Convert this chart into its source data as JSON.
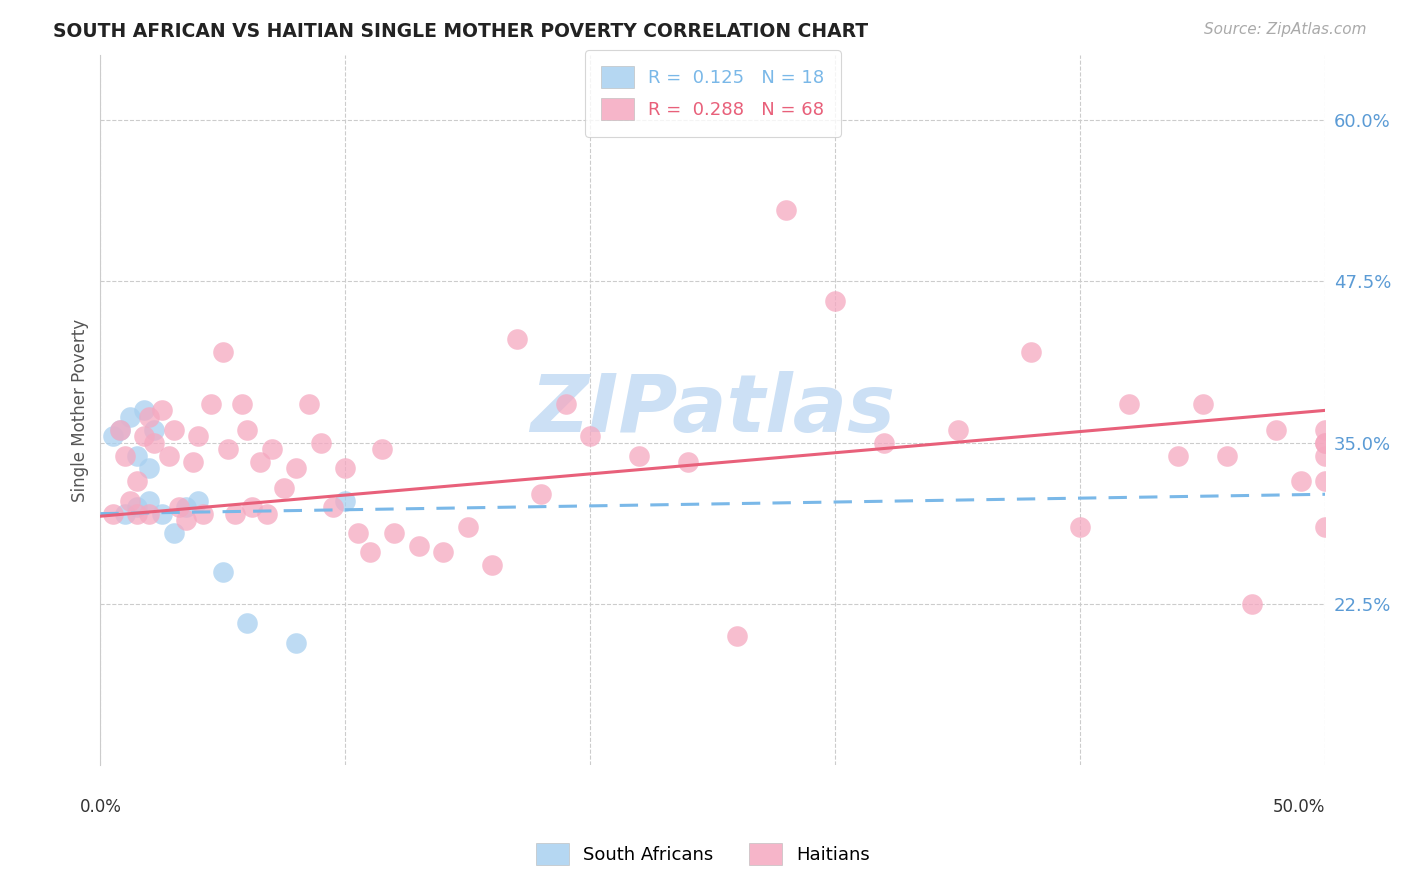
{
  "title": "SOUTH AFRICAN VS HAITIAN SINGLE MOTHER POVERTY CORRELATION CHART",
  "source": "Source: ZipAtlas.com",
  "ylabel": "Single Mother Poverty",
  "ytick_values": [
    0.6,
    0.475,
    0.35,
    0.225
  ],
  "xlim": [
    0.0,
    0.5
  ],
  "ylim": [
    0.1,
    0.65
  ],
  "sa_R": "0.125",
  "sa_N": "18",
  "ha_R": "0.288",
  "ha_N": "68",
  "sa_color": "#a8d0f0",
  "ha_color": "#f5a8c0",
  "sa_line_color": "#7ab8e8",
  "ha_line_color": "#e8607a",
  "watermark": "ZIPatlas",
  "watermark_color": "#cce0f5",
  "tick_label_color": "#5b9bd5",
  "sa_x": [
    0.005,
    0.008,
    0.01,
    0.012,
    0.015,
    0.015,
    0.018,
    0.02,
    0.02,
    0.022,
    0.025,
    0.03,
    0.035,
    0.04,
    0.05,
    0.06,
    0.08,
    0.1
  ],
  "sa_y": [
    0.355,
    0.36,
    0.295,
    0.37,
    0.34,
    0.3,
    0.375,
    0.305,
    0.33,
    0.36,
    0.295,
    0.28,
    0.3,
    0.305,
    0.25,
    0.21,
    0.195,
    0.305
  ],
  "ha_x": [
    0.005,
    0.008,
    0.01,
    0.012,
    0.015,
    0.015,
    0.018,
    0.02,
    0.02,
    0.022,
    0.025,
    0.028,
    0.03,
    0.032,
    0.035,
    0.038,
    0.04,
    0.042,
    0.045,
    0.05,
    0.052,
    0.055,
    0.058,
    0.06,
    0.062,
    0.065,
    0.068,
    0.07,
    0.075,
    0.08,
    0.085,
    0.09,
    0.095,
    0.1,
    0.105,
    0.11,
    0.115,
    0.12,
    0.13,
    0.14,
    0.15,
    0.16,
    0.17,
    0.18,
    0.19,
    0.2,
    0.22,
    0.24,
    0.26,
    0.28,
    0.3,
    0.32,
    0.35,
    0.38,
    0.4,
    0.42,
    0.44,
    0.45,
    0.46,
    0.47,
    0.48,
    0.49,
    0.5,
    0.5,
    0.5,
    0.5,
    0.5,
    0.5
  ],
  "ha_y": [
    0.295,
    0.36,
    0.34,
    0.305,
    0.32,
    0.295,
    0.355,
    0.37,
    0.295,
    0.35,
    0.375,
    0.34,
    0.36,
    0.3,
    0.29,
    0.335,
    0.355,
    0.295,
    0.38,
    0.42,
    0.345,
    0.295,
    0.38,
    0.36,
    0.3,
    0.335,
    0.295,
    0.345,
    0.315,
    0.33,
    0.38,
    0.35,
    0.3,
    0.33,
    0.28,
    0.265,
    0.345,
    0.28,
    0.27,
    0.265,
    0.285,
    0.255,
    0.43,
    0.31,
    0.38,
    0.355,
    0.34,
    0.335,
    0.2,
    0.53,
    0.46,
    0.35,
    0.36,
    0.42,
    0.285,
    0.38,
    0.34,
    0.38,
    0.34,
    0.225,
    0.36,
    0.32,
    0.35,
    0.36,
    0.34,
    0.285,
    0.32,
    0.35
  ]
}
